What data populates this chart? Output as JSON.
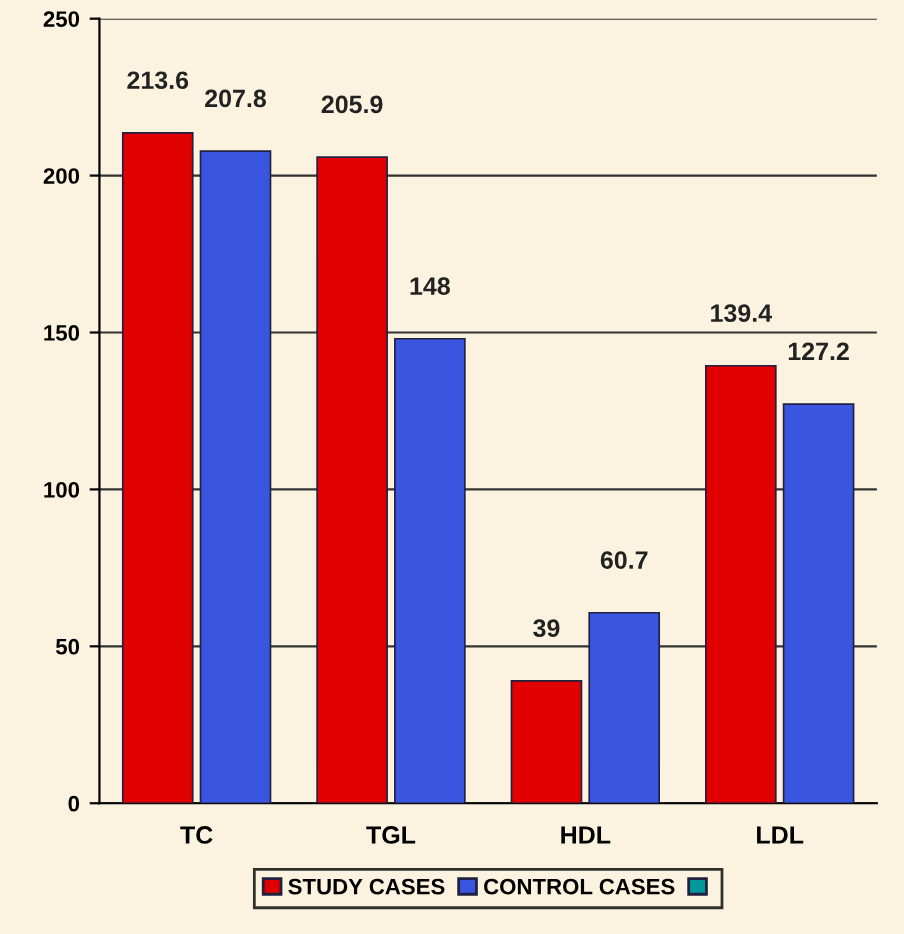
{
  "chart_data": {
    "type": "bar",
    "categories": [
      "TC",
      "TGL",
      "HDL",
      "LDL"
    ],
    "series": [
      {
        "name": "STUDY CASES",
        "color": "#e00000",
        "values": [
          213.6,
          205.9,
          39,
          139.4
        ]
      },
      {
        "name": "CONTROL CASES",
        "color": "#3a55e0",
        "values": [
          207.8,
          148,
          60.7,
          127.2
        ]
      }
    ],
    "ylim": [
      0,
      250
    ],
    "yticks": [
      0,
      50,
      100,
      150,
      200,
      250
    ],
    "grid": "y",
    "legend": "bottom",
    "data_labels": true
  }
}
